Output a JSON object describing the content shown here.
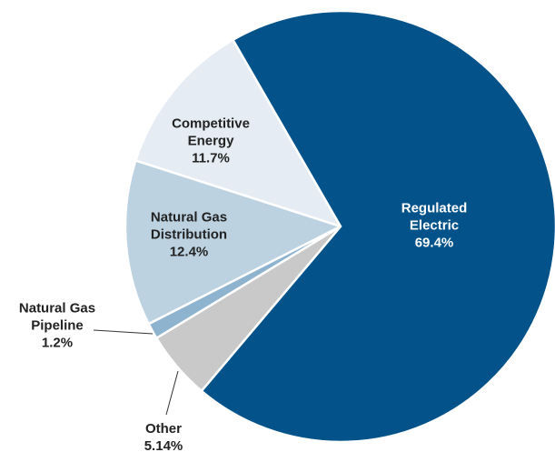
{
  "chart_data": {
    "type": "pie",
    "categories": [
      "Regulated Electric",
      "Other",
      "Natural Gas Pipeline",
      "Natural Gas Distribution",
      "Competitive Energy"
    ],
    "values": [
      69.4,
      5.14,
      1.2,
      12.4,
      11.7
    ],
    "value_labels": [
      "69.4%",
      "5.14%",
      "1.2%",
      "12.4%",
      "11.7%"
    ],
    "colors": [
      "#03528a",
      "#c9c9c9",
      "#8db3cf",
      "#bdd2e1",
      "#e5ecf3"
    ]
  }
}
